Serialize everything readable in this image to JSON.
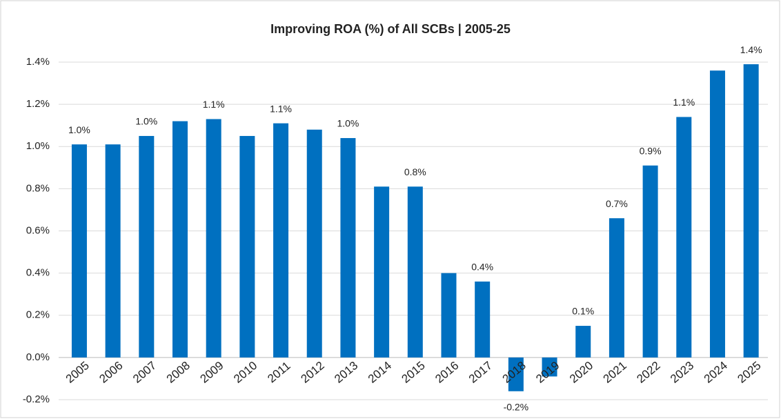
{
  "chart_data": {
    "type": "bar",
    "title": "Improving ROA (%) of All SCBs | 2005-25",
    "categories": [
      "2005",
      "2006",
      "2007",
      "2008",
      "2009",
      "2010",
      "2011",
      "2012",
      "2013",
      "2014",
      "2015",
      "2016",
      "2017",
      "2018",
      "2019",
      "2020",
      "2021",
      "2022",
      "2023",
      "2024",
      "2025"
    ],
    "values": [
      1.01,
      1.01,
      1.05,
      1.12,
      1.13,
      1.05,
      1.11,
      1.08,
      1.04,
      0.81,
      0.81,
      0.4,
      0.36,
      -0.16,
      -0.09,
      0.15,
      0.66,
      0.91,
      1.14,
      1.36,
      1.39
    ],
    "value_labels": [
      "1.0%",
      null,
      "1.0%",
      null,
      "1.1%",
      null,
      "1.1%",
      null,
      "1.0%",
      null,
      "0.8%",
      null,
      "0.4%",
      "-0.2%",
      null,
      "0.1%",
      "0.7%",
      "0.9%",
      "1.1%",
      null,
      "1.4%"
    ],
    "color": "#0070c0",
    "ylim": [
      -0.2,
      1.4
    ],
    "yticks": [
      {
        "value": -0.2,
        "label": "-0.2%"
      },
      {
        "value": 0,
        "label": "0.0%"
      },
      {
        "value": 0.2,
        "label": "0.2%"
      },
      {
        "value": 0.4,
        "label": "0.4%"
      },
      {
        "value": 0.6,
        "label": "0.6%"
      },
      {
        "value": 0.8,
        "label": "0.8%"
      },
      {
        "value": 1.0,
        "label": "1.0%"
      },
      {
        "value": 1.2,
        "label": "1.2%"
      },
      {
        "value": 1.4,
        "label": "1.4%"
      }
    ],
    "grid": true
  }
}
